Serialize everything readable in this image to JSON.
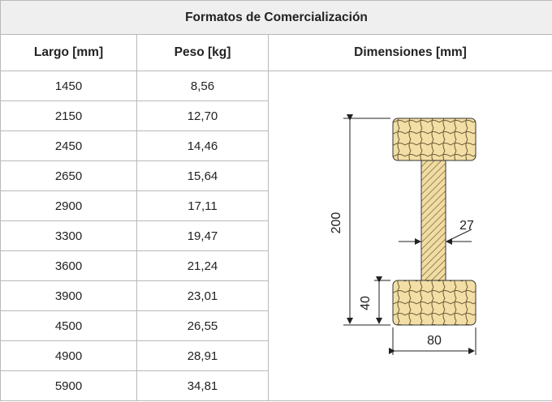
{
  "table": {
    "title": "Formatos de Comercialización",
    "headers": [
      "Largo [mm]",
      "Peso [kg]",
      "Dimensiones [mm]"
    ],
    "rows": [
      [
        "1450",
        "8,56"
      ],
      [
        "2150",
        "12,70"
      ],
      [
        "2450",
        "14,46"
      ],
      [
        "2650",
        "15,64"
      ],
      [
        "2900",
        "17,11"
      ],
      [
        "3300",
        "19,47"
      ],
      [
        "3600",
        "21,24"
      ],
      [
        "3900",
        "23,01"
      ],
      [
        "4500",
        "26,55"
      ],
      [
        "4900",
        "28,91"
      ],
      [
        "5900",
        "34,81"
      ]
    ],
    "diagram": {
      "height": "200",
      "web": "27",
      "flange": "40",
      "width": "80"
    }
  }
}
